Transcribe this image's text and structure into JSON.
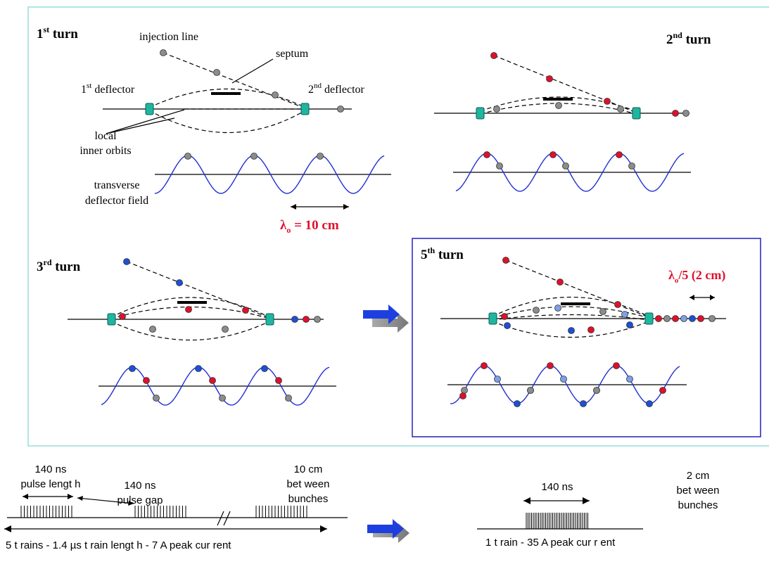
{
  "colors": {
    "grey": "#8c8c8c",
    "red": "#e0102a",
    "blue": "#1e4fd8",
    "lightblue": "#7fa0e8",
    "deflector": "#1fb6a0",
    "wave": "#1f2fd0",
    "frame": "#7fd6d6",
    "box": "#2020c0"
  },
  "panel1": {
    "title_num": "1",
    "title_sup": "st",
    "title_word": " turn",
    "injection": "injection line",
    "septum": "septum",
    "defl1_num": "1",
    "defl1_sup": "st",
    "defl1_word": " deflector",
    "defl2_num": "2",
    "defl2_sup": "nd",
    "defl2_word": " deflector",
    "orbits_1": "local",
    "orbits_2": "inner orbits",
    "field_1": "transverse",
    "field_2": "deflector field",
    "lambda": "λ",
    "lambda_sub": "o",
    "lambda_val": " = 10 cm"
  },
  "panel2": {
    "title_num": "2",
    "title_sup": "nd",
    "title_word": " turn"
  },
  "panel3": {
    "title_num": "3",
    "title_sup": "rd",
    "title_word": " turn"
  },
  "panel5": {
    "title_num": "5",
    "title_sup": "th",
    "title_word": " turn",
    "lambda": "λ",
    "lambda_sub": "o",
    "lambda_val": "/5 (2 cm)"
  },
  "bottom": {
    "pulse_len_1": "140 ns",
    "pulse_len_2": "pulse  lengt h",
    "pulse_gap_1": "140 ns",
    "pulse_gap_2": "pulse  gap",
    "between_1": "10 cm",
    "between_2": "bet ween",
    "between_3": "bunches",
    "trains": "5 t rains - 1.4 µs t rain lengt h - 7 A peak cur rent",
    "ns140": "140 ns",
    "cm2_1": "2 cm",
    "cm2_2": "bet ween",
    "cm2_3": "bunches",
    "one_train": "1 t rain - 35 A peak cur r ent"
  }
}
